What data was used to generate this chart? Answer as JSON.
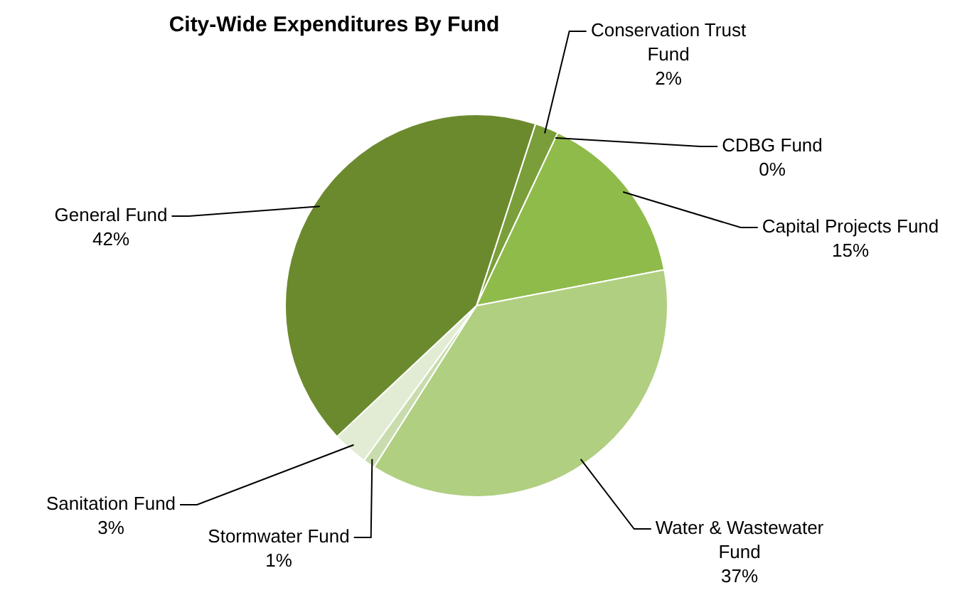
{
  "chart_data": {
    "type": "pie",
    "title": "City-Wide Expenditures By Fund",
    "categories": [
      "Conservation Trust Fund",
      "CDBG Fund",
      "Capital Projects Fund",
      "Water & Wastewater Fund",
      "Stormwater Fund",
      "Sanitation Fund",
      "General Fund"
    ],
    "values": [
      2,
      0,
      15,
      37,
      1,
      3,
      42
    ],
    "value_labels": [
      "2%",
      "0%",
      "15%",
      "37%",
      "1%",
      "3%",
      "42%"
    ],
    "colors": [
      "#7a9e3a",
      "#8fb845",
      "#8fbb4a",
      "#b0cf80",
      "#c9dcae",
      "#e2ecd4",
      "#6b8a2e"
    ],
    "legend": false
  }
}
